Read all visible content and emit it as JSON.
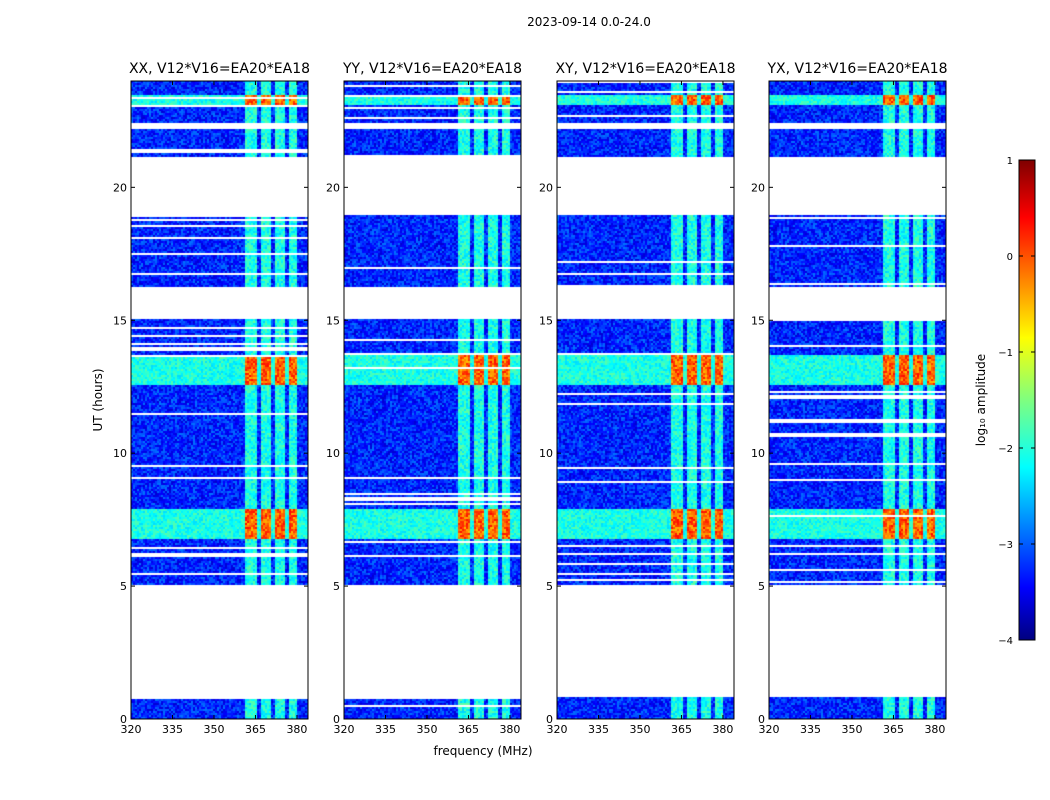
{
  "chart_data": {
    "type": "heatmap",
    "suptitle": "2023-09-14 0.0-24.0",
    "ylabel": "UT (hours)",
    "xlabel": "frequency (MHz)",
    "xlim": [
      320,
      384
    ],
    "ylim": [
      0,
      24
    ],
    "xticks": [
      "320",
      "335",
      "350",
      "365",
      "380"
    ],
    "xtick_values": [
      320,
      335,
      350,
      365,
      380
    ],
    "yticks": [
      "0",
      "5",
      "10",
      "15",
      "20"
    ],
    "ytick_values": [
      0,
      5,
      10,
      15,
      20
    ],
    "colorbar": {
      "label": "log₁₀ amplitude",
      "min": -4,
      "max": 1,
      "ticks": [
        "1",
        "0",
        "−1",
        "−2",
        "−3",
        "−4"
      ],
      "tick_values": [
        1,
        0,
        -1,
        -2,
        -3,
        -4
      ],
      "colormap": "jet"
    },
    "panels": [
      {
        "title": "XX, V12*V16=EA20*EA18"
      },
      {
        "title": "YY, V12*V16=EA20*EA18"
      },
      {
        "title": "XY, V12*V16=EA20*EA18"
      },
      {
        "title": "YX, V12*V16=EA20*EA18"
      }
    ],
    "data_gaps_ut": [
      [
        0.85,
        5.1
      ],
      [
        15.1,
        16.3
      ],
      [
        19.0,
        21.2
      ],
      [
        22.25,
        22.45
      ]
    ],
    "rfi_bands_mhz": [
      [
        361,
        365.5
      ],
      [
        366.5,
        370.5
      ],
      [
        371.5,
        375.5
      ],
      [
        376.5,
        380
      ]
    ],
    "bright_intervals_ut": [
      [
        6.8,
        7.9
      ],
      [
        12.6,
        13.7
      ],
      [
        23.1,
        23.5
      ]
    ],
    "background_level": -3.2,
    "rfi_level": -2.0,
    "peak_level": -0.1
  }
}
